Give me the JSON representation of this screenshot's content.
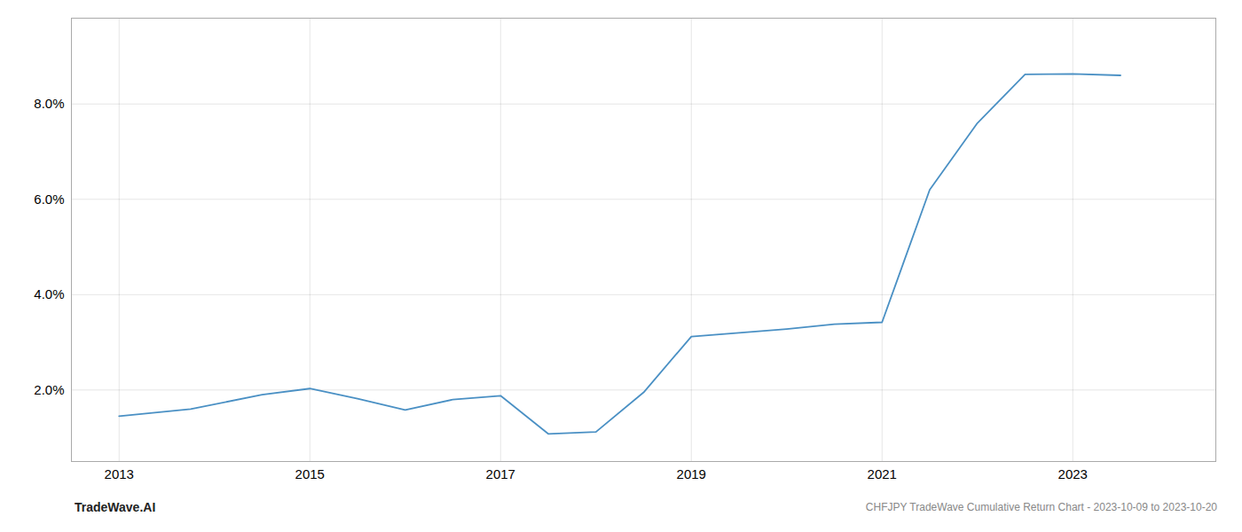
{
  "chart_data": {
    "type": "line",
    "title": "CHFJPY TradeWave Cumulative Return Chart - 2023-10-09 to 2023-10-20",
    "annotations": [
      "TradeWave.AI"
    ],
    "x": [
      2013,
      2013.75,
      2014.5,
      2015,
      2015.5,
      2016,
      2016.5,
      2017,
      2017.5,
      2018,
      2018.5,
      2019,
      2019.5,
      2020,
      2020.5,
      2021,
      2021.5,
      2022,
      2022.5,
      2023,
      2023.5
    ],
    "values": [
      1.45,
      1.6,
      1.9,
      2.03,
      1.82,
      1.58,
      1.8,
      1.88,
      1.08,
      1.12,
      1.95,
      3.12,
      3.2,
      3.28,
      3.38,
      3.42,
      6.2,
      7.6,
      8.62,
      8.63,
      8.6
    ],
    "color": "#4a90c4",
    "xlim": [
      2012.5,
      2024.5
    ],
    "xticks": [
      2013,
      2015,
      2017,
      2019,
      2021,
      2023
    ],
    "ylim": [
      0.5,
      9.8
    ],
    "yticks": [
      {
        "value": 2.0,
        "label": "2.0%"
      },
      {
        "value": 4.0,
        "label": "4.0%"
      },
      {
        "value": 6.0,
        "label": "6.0%"
      },
      {
        "value": 8.0,
        "label": "8.0%"
      }
    ],
    "grid": true
  }
}
